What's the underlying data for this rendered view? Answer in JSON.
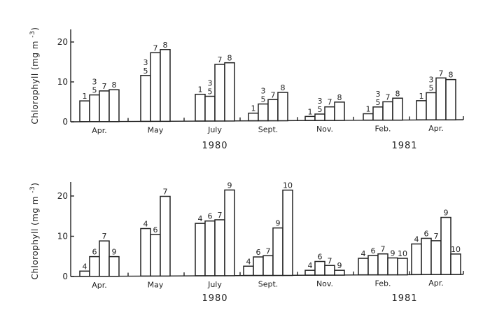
{
  "chart_data": [
    {
      "type": "bar",
      "panel": "top",
      "ylabel": "Chlorophyll (mg m-3)",
      "ylabel_main": "Chlorophyll",
      "ylabel_unit": "(mg m",
      "ylabel_exp": "-3",
      "ylabel_close": ")",
      "ylim": [
        0,
        23
      ],
      "yticks": [
        0,
        10,
        20
      ],
      "years": [
        {
          "label": "1980",
          "under": "July"
        },
        {
          "label": "1981",
          "under": "Feb."
        }
      ],
      "groups": [
        {
          "label": "Apr.",
          "bars": [
            {
              "label": "1",
              "value": 5.2
            },
            {
              "label": "3,5",
              "value": 6.7
            },
            {
              "label": "7",
              "value": 7.7
            },
            {
              "label": "8",
              "value": 8.0
            }
          ]
        },
        {
          "label": "May",
          "bars": [
            {
              "label": "3,5",
              "value": 11.5
            },
            {
              "label": "7",
              "value": 17.2
            },
            {
              "label": "8",
              "value": 18.0
            }
          ]
        },
        {
          "label": "July",
          "bars": [
            {
              "label": "1",
              "value": 6.7
            },
            {
              "label": "3,5",
              "value": 6.2
            },
            {
              "label": "7",
              "value": 14.2
            },
            {
              "label": "8",
              "value": 14.6
            }
          ]
        },
        {
          "label": "Sept.",
          "bars": [
            {
              "label": "1",
              "value": 1.9
            },
            {
              "label": "3,5",
              "value": 4.2
            },
            {
              "label": "7",
              "value": 5.3
            },
            {
              "label": "8",
              "value": 7.1
            }
          ]
        },
        {
          "label": "Nov.",
          "bars": [
            {
              "label": "1",
              "value": 1.0
            },
            {
              "label": "3,5",
              "value": 1.6
            },
            {
              "label": "7",
              "value": 3.4
            },
            {
              "label": "8",
              "value": 4.6
            }
          ]
        },
        {
          "label": "Feb.",
          "bars": [
            {
              "label": "1",
              "value": 1.6
            },
            {
              "label": "3,5",
              "value": 3.3
            },
            {
              "label": "7",
              "value": 4.6
            },
            {
              "label": "8",
              "value": 5.5
            }
          ]
        },
        {
          "label": "Apr.",
          "bars": [
            {
              "label": "1",
              "value": 4.8
            },
            {
              "label": "3,5",
              "value": 6.8
            },
            {
              "label": "7",
              "value": 10.5
            },
            {
              "label": "8",
              "value": 10.1
            }
          ]
        }
      ]
    },
    {
      "type": "bar",
      "panel": "bottom",
      "ylabel": "Chlorophyll (mg m-3)",
      "ylabel_main": "Chlorophyll",
      "ylabel_unit": "(mg m",
      "ylabel_exp": "-3",
      "ylabel_close": ")",
      "ylim": [
        0,
        23.5
      ],
      "yticks": [
        0,
        10,
        20
      ],
      "years": [
        {
          "label": "1980",
          "under": "July"
        },
        {
          "label": "1981",
          "under": "Feb."
        }
      ],
      "groups": [
        {
          "label": "Apr.",
          "bars": [
            {
              "label": "4",
              "value": 1.3
            },
            {
              "label": "6",
              "value": 4.9
            },
            {
              "label": "7",
              "value": 8.8
            },
            {
              "label": "9",
              "value": 4.9
            }
          ]
        },
        {
          "label": "May",
          "bars": [
            {
              "label": "4",
              "value": 11.8
            },
            {
              "label": "6",
              "value": 10.3
            },
            {
              "label": "7",
              "value": 19.8
            }
          ]
        },
        {
          "label": "July",
          "bars": [
            {
              "label": "4",
              "value": 13.0
            },
            {
              "label": "6",
              "value": 13.6
            },
            {
              "label": "7",
              "value": 13.9
            },
            {
              "label": "9",
              "value": 21.3
            }
          ]
        },
        {
          "label": "Sept.",
          "bars": [
            {
              "label": "4",
              "value": 2.3
            },
            {
              "label": "6",
              "value": 4.6
            },
            {
              "label": "7",
              "value": 4.9
            },
            {
              "label": "9",
              "value": 11.8
            },
            {
              "label": "10",
              "value": 21.2
            }
          ]
        },
        {
          "label": "Nov.",
          "bars": [
            {
              "label": "4",
              "value": 1.2
            },
            {
              "label": "6",
              "value": 3.4
            },
            {
              "label": "7",
              "value": 2.4
            },
            {
              "label": "9",
              "value": 1.2
            }
          ]
        },
        {
          "label": "Feb.",
          "bars": [
            {
              "label": "4",
              "value": 4.1
            },
            {
              "label": "6",
              "value": 4.8
            },
            {
              "label": "7",
              "value": 5.2
            },
            {
              "label": "9",
              "value": 4.2
            },
            {
              "label": "10",
              "value": 4.1
            }
          ]
        },
        {
          "label": "Apr.",
          "bars": [
            {
              "label": "4",
              "value": 7.6
            },
            {
              "label": "6",
              "value": 9.0
            },
            {
              "label": "7",
              "value": 8.4
            },
            {
              "label": "9",
              "value": 14.2
            },
            {
              "label": "10",
              "value": 5.1
            }
          ]
        }
      ]
    }
  ]
}
